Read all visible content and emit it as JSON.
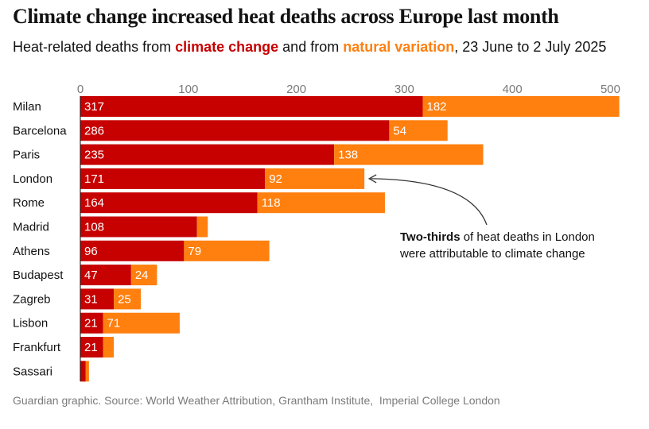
{
  "header": {
    "title": "Climate change increased heat deaths across Europe last month",
    "subtitle_prefix": "Heat-related deaths from ",
    "subtitle_climate": "climate change",
    "subtitle_mid": " and from ",
    "subtitle_natural": "natural variation",
    "subtitle_suffix": ", 23 June to 2 July 2025"
  },
  "colors": {
    "climate": "#c70000",
    "natural": "#ff7f0f",
    "text": "#121212",
    "muted": "#7a7a7a"
  },
  "annotation": {
    "bold": "Two-thirds",
    "line1_rest": " of heat deaths in London",
    "line2": "were attributable to climate change",
    "target_city": "London"
  },
  "source": "Guardian graphic. Source: World Weather Attribution, Grantham Institute,  Imperial College London",
  "chart_data": {
    "type": "bar",
    "orientation": "horizontal",
    "stacked": true,
    "axis_position": "top",
    "xlim": [
      0,
      500
    ],
    "xticks": [
      0,
      100,
      200,
      300,
      400,
      500
    ],
    "categories": [
      "Milan",
      "Barcelona",
      "Paris",
      "London",
      "Rome",
      "Madrid",
      "Athens",
      "Budapest",
      "Zagreb",
      "Lisbon",
      "Frankfurt",
      "Sassari"
    ],
    "series": [
      {
        "name": "climate change",
        "values": [
          317,
          286,
          235,
          171,
          164,
          108,
          96,
          47,
          31,
          21,
          21,
          5
        ],
        "labels": [
          "317",
          "286",
          "235",
          "171",
          "164",
          "108",
          "96",
          "47",
          "31",
          "21",
          "21",
          ""
        ]
      },
      {
        "name": "natural variation",
        "values": [
          182,
          54,
          138,
          92,
          118,
          10,
          79,
          24,
          25,
          71,
          10,
          3
        ],
        "labels": [
          "182",
          "54",
          "138",
          "92",
          "118",
          "",
          "79",
          "24",
          "25",
          "71",
          "",
          ""
        ]
      }
    ]
  }
}
